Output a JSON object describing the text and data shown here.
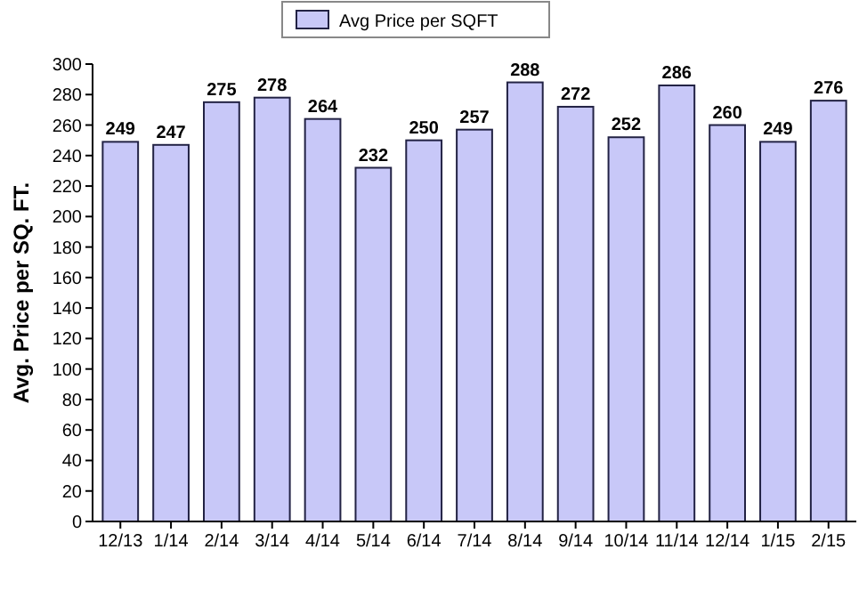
{
  "chart_data": {
    "type": "bar",
    "ylabel": "Avg. Price per SQ. FT.",
    "categories": [
      "12/13",
      "1/14",
      "2/14",
      "3/14",
      "4/14",
      "5/14",
      "6/14",
      "7/14",
      "8/14",
      "9/14",
      "10/14",
      "11/14",
      "12/14",
      "1/15",
      "2/15"
    ],
    "series": [
      {
        "name": "Avg Price per SQFT",
        "color": "#c8c8f8",
        "values": [
          249,
          247,
          275,
          278,
          264,
          232,
          250,
          257,
          288,
          272,
          252,
          286,
          260,
          249,
          276
        ]
      }
    ],
    "ylim": [
      0,
      300
    ],
    "yticks": [
      0,
      20,
      40,
      60,
      80,
      100,
      120,
      140,
      160,
      180,
      200,
      220,
      240,
      260,
      280,
      300
    ],
    "data_labels": true,
    "legend": "top",
    "grid": false
  }
}
